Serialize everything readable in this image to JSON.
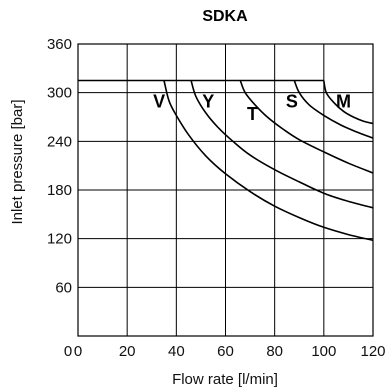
{
  "chart_data": {
    "type": "line",
    "title": "SDKA",
    "xlabel": "Flow rate [l/min]",
    "ylabel": "Inlet pressure [bar]",
    "xlim": [
      0,
      120
    ],
    "ylim": [
      0,
      360
    ],
    "x_ticks": [
      0,
      20,
      40,
      60,
      80,
      100,
      120
    ],
    "y_ticks": [
      60,
      120,
      180,
      240,
      300,
      360
    ],
    "grid": true,
    "max_pressure_line": {
      "y": 315,
      "x_range": [
        0,
        100
      ]
    },
    "series": [
      {
        "name": "V",
        "label_at": [
          33,
          282
        ],
        "points": [
          [
            35,
            315
          ],
          [
            37,
            290
          ],
          [
            40,
            272
          ],
          [
            45,
            248
          ],
          [
            52,
            222
          ],
          [
            60,
            200
          ],
          [
            70,
            178
          ],
          [
            80,
            160
          ],
          [
            90,
            146
          ],
          [
            100,
            134
          ],
          [
            110,
            125
          ],
          [
            120,
            118
          ]
        ]
      },
      {
        "name": "Y",
        "label_at": [
          53,
          282
        ],
        "points": [
          [
            46,
            315
          ],
          [
            48,
            295
          ],
          [
            52,
            275
          ],
          [
            57,
            257
          ],
          [
            63,
            240
          ],
          [
            70,
            223
          ],
          [
            80,
            205
          ],
          [
            90,
            190
          ],
          [
            100,
            176
          ],
          [
            110,
            166
          ],
          [
            120,
            158
          ]
        ]
      },
      {
        "name": "T",
        "label_at": [
          71,
          266
        ],
        "points": [
          [
            66,
            315
          ],
          [
            68,
            300
          ],
          [
            72,
            285
          ],
          [
            77,
            270
          ],
          [
            83,
            256
          ],
          [
            90,
            242
          ],
          [
            100,
            227
          ],
          [
            110,
            213
          ],
          [
            120,
            201
          ]
        ]
      },
      {
        "name": "S",
        "label_at": [
          87,
          282
        ],
        "points": [
          [
            88,
            315
          ],
          [
            90,
            300
          ],
          [
            94,
            285
          ],
          [
            100,
            272
          ],
          [
            107,
            260
          ],
          [
            113,
            252
          ],
          [
            120,
            244
          ]
        ]
      },
      {
        "name": "M",
        "label_at": [
          108,
          282
        ],
        "points": [
          [
            100,
            315
          ],
          [
            101,
            300
          ],
          [
            104,
            288
          ],
          [
            108,
            277
          ],
          [
            112,
            270
          ],
          [
            116,
            265
          ],
          [
            120,
            262
          ]
        ]
      }
    ]
  }
}
